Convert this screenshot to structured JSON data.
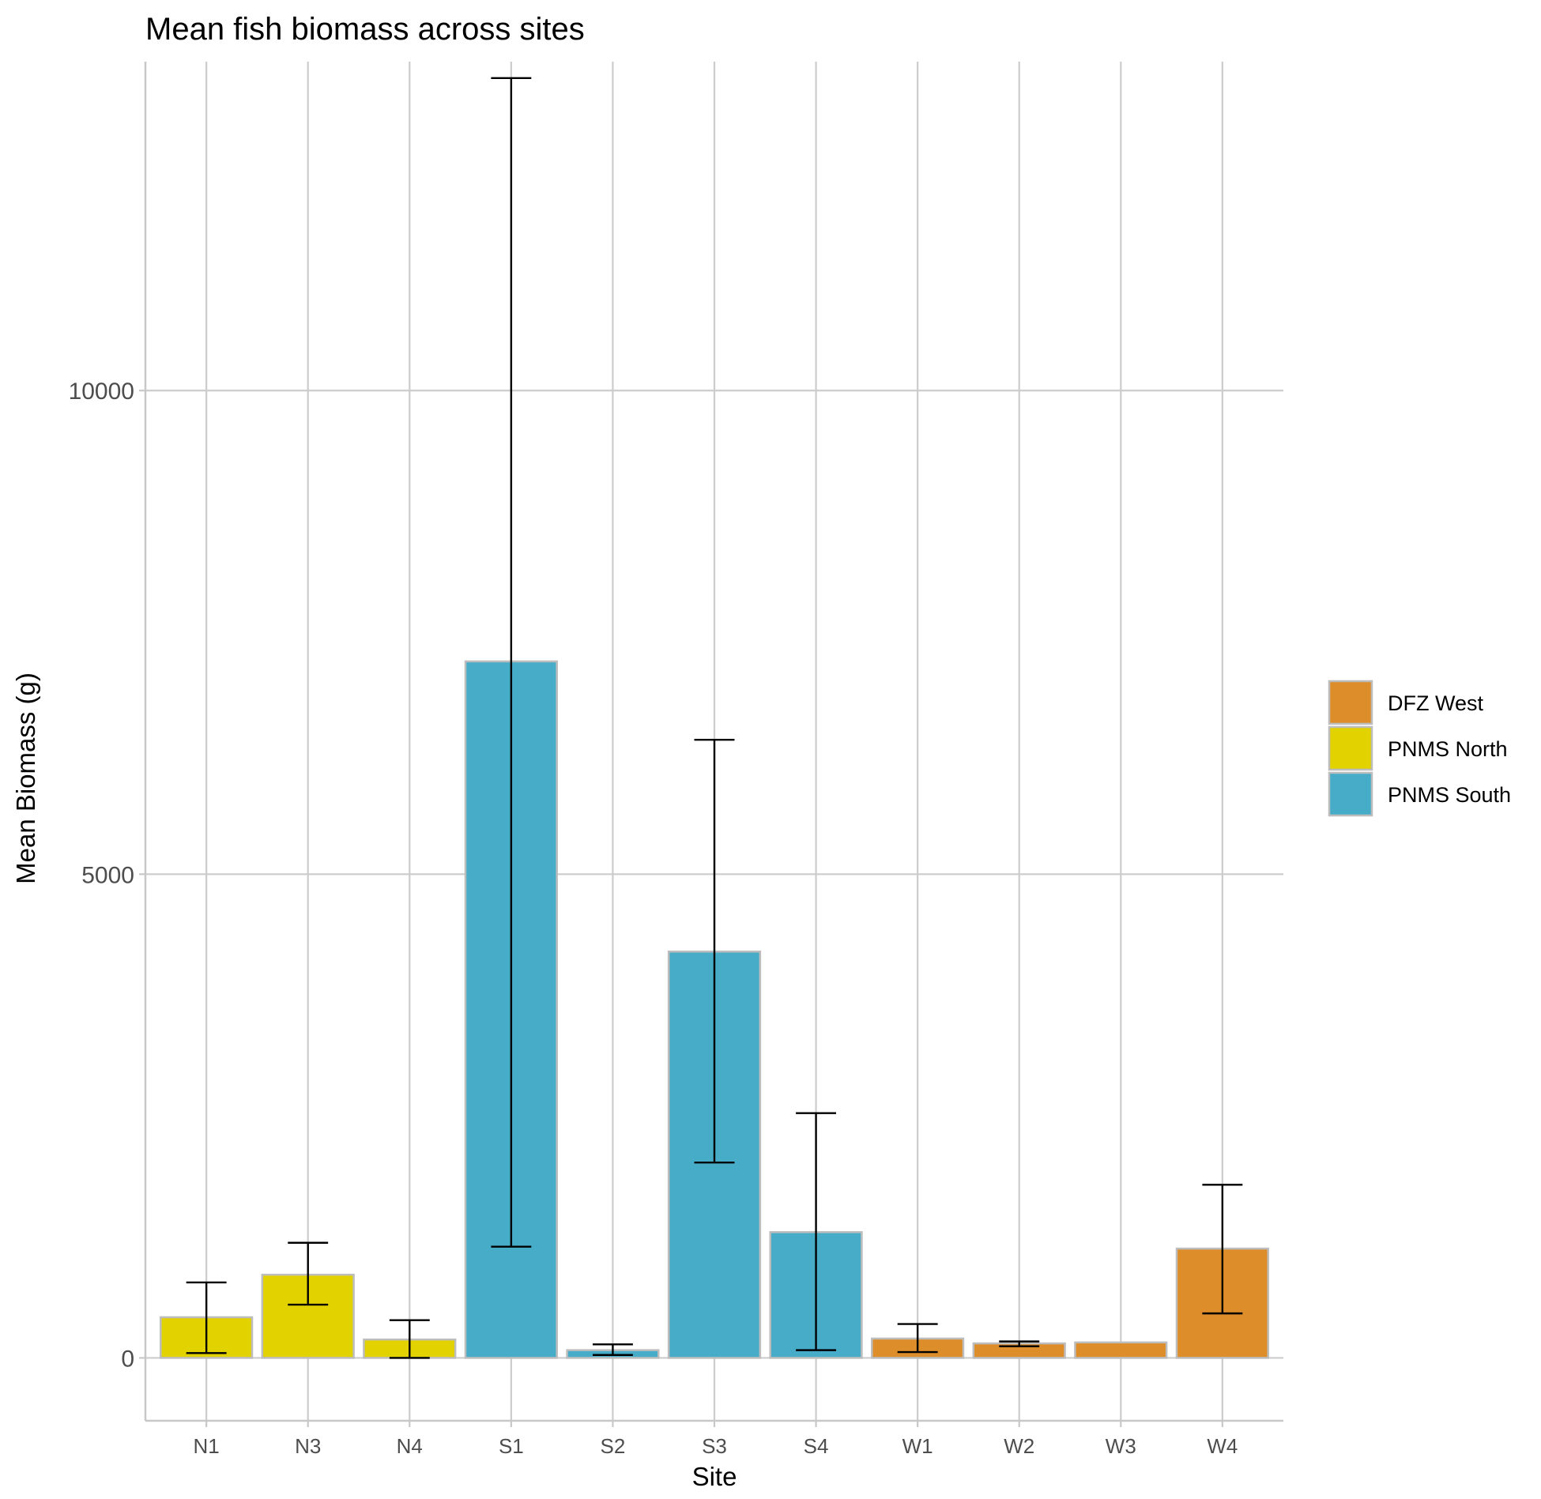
{
  "chart_data": {
    "type": "bar",
    "title": "Mean fish biomass across sites",
    "xlabel": "Site",
    "ylabel": "Mean Biomass (g)",
    "ylim": [
      -650,
      13400
    ],
    "y_ticks": [
      0,
      5000,
      10000
    ],
    "y_tick_labels": [
      "0",
      "5000",
      "10000"
    ],
    "grid": true,
    "legend_position": "right",
    "categories": [
      "N1",
      "N3",
      "N4",
      "S1",
      "S2",
      "S3",
      "S4",
      "W1",
      "W2",
      "W3",
      "W4"
    ],
    "values": [
      420,
      860,
      190,
      7200,
      80,
      4200,
      1300,
      200,
      150,
      160,
      1130
    ],
    "error_lower": [
      50,
      550,
      0,
      1150,
      30,
      2020,
      80,
      60,
      120,
      null,
      460
    ],
    "error_upper": [
      780,
      1190,
      390,
      13230,
      140,
      6390,
      2530,
      350,
      170,
      null,
      1790
    ],
    "groups": [
      "PNMS North",
      "PNMS North",
      "PNMS North",
      "PNMS South",
      "PNMS South",
      "PNMS South",
      "PNMS South",
      "DFZ West",
      "DFZ West",
      "DFZ West",
      "DFZ West"
    ],
    "legend": [
      {
        "name": "DFZ West",
        "color": "#DD8D29"
      },
      {
        "name": "PNMS North",
        "color": "#E2D200"
      },
      {
        "name": "PNMS South",
        "color": "#46ACC8"
      }
    ]
  }
}
